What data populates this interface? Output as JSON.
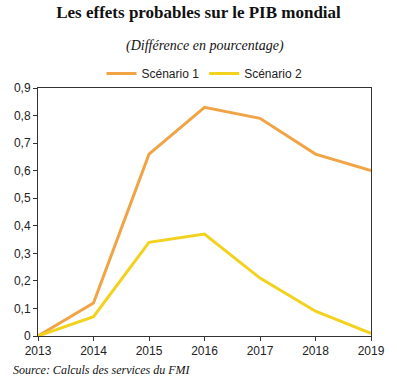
{
  "chart_data": {
    "type": "line",
    "title": "Les effets probables sur le PIB mondial",
    "subtitle": "(Différence en pourcentage)",
    "source": "Source: Calculs des services du FMI",
    "x": [
      2013,
      2014,
      2015,
      2016,
      2017,
      2018,
      2019
    ],
    "series": [
      {
        "name": "Scénario 1",
        "color": "#f0a445",
        "values": [
          0,
          0.12,
          0.66,
          0.83,
          0.79,
          0.66,
          0.6
        ]
      },
      {
        "name": "Scénario 2",
        "color": "#f2d21c",
        "values": [
          0,
          0.07,
          0.34,
          0.37,
          0.21,
          0.09,
          0.01
        ]
      }
    ],
    "xlim": [
      2013,
      2019
    ],
    "xticks": [
      2013,
      2014,
      2015,
      2016,
      2017,
      2018,
      2019
    ],
    "ylim": [
      0,
      0.9
    ],
    "yticks": [
      0,
      {
        "value": 0.1,
        "label": "0,1"
      },
      {
        "value": 0.2,
        "label": "0,2"
      },
      {
        "value": 0.3,
        "label": "0,3"
      },
      {
        "value": 0.4,
        "label": "0,4"
      },
      {
        "value": 0.5,
        "label": "0,5"
      },
      {
        "value": 0.6,
        "label": "0,6"
      },
      {
        "value": 0.7,
        "label": "0,7"
      },
      {
        "value": 0.8,
        "label": "0,8"
      },
      {
        "value": 0.9,
        "label": "0,9"
      }
    ],
    "grid": false,
    "legend": "top"
  }
}
